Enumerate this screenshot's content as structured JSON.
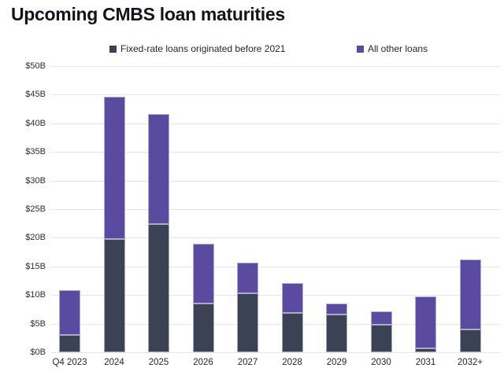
{
  "page": {
    "title": "Upcoming CMBS loan maturities"
  },
  "legend": {
    "items": [
      {
        "label": "Fixed-rate loans originated before 2021",
        "color": "#3a4254"
      },
      {
        "label": "All other loans",
        "color": "#5a4ba0"
      }
    ]
  },
  "colors": {
    "series_fixed_rate": "#3a4254",
    "series_all_other": "#5a4ba0",
    "gridline": "#e6e6e6",
    "title_text": "#13131c",
    "axis_text": "#2b2e36"
  },
  "chart_data": {
    "type": "bar",
    "stacked": true,
    "title": "Upcoming CMBS loan maturities",
    "xlabel": "",
    "ylabel": "",
    "categories": [
      "Q4 2023",
      "2024",
      "2025",
      "2026",
      "2027",
      "2028",
      "2029",
      "2030",
      "2031",
      "2032+"
    ],
    "series": [
      {
        "name": "Fixed-rate loans originated before 2021",
        "color": "#3a4254",
        "values": [
          3.0,
          19.8,
          22.4,
          8.5,
          10.3,
          6.8,
          6.6,
          4.8,
          0.7,
          4.0
        ]
      },
      {
        "name": "All other loans",
        "color": "#5a4ba0",
        "values": [
          7.9,
          24.8,
          19.2,
          10.4,
          5.3,
          5.3,
          1.9,
          2.4,
          9.0,
          12.2
        ]
      }
    ],
    "stack_totals": [
      10.9,
      44.6,
      41.6,
      18.9,
      15.6,
      12.1,
      8.5,
      7.2,
      9.7,
      16.2
    ],
    "ylim": [
      0,
      50
    ],
    "y_tick_step": 5,
    "y_tick_labels": [
      "$0B",
      "$5B",
      "$10B",
      "$15B",
      "$20B",
      "$25B",
      "$30B",
      "$35B",
      "$40B",
      "$45B",
      "$50B"
    ],
    "grid": true,
    "legend_position": "top",
    "units": "billions USD"
  }
}
